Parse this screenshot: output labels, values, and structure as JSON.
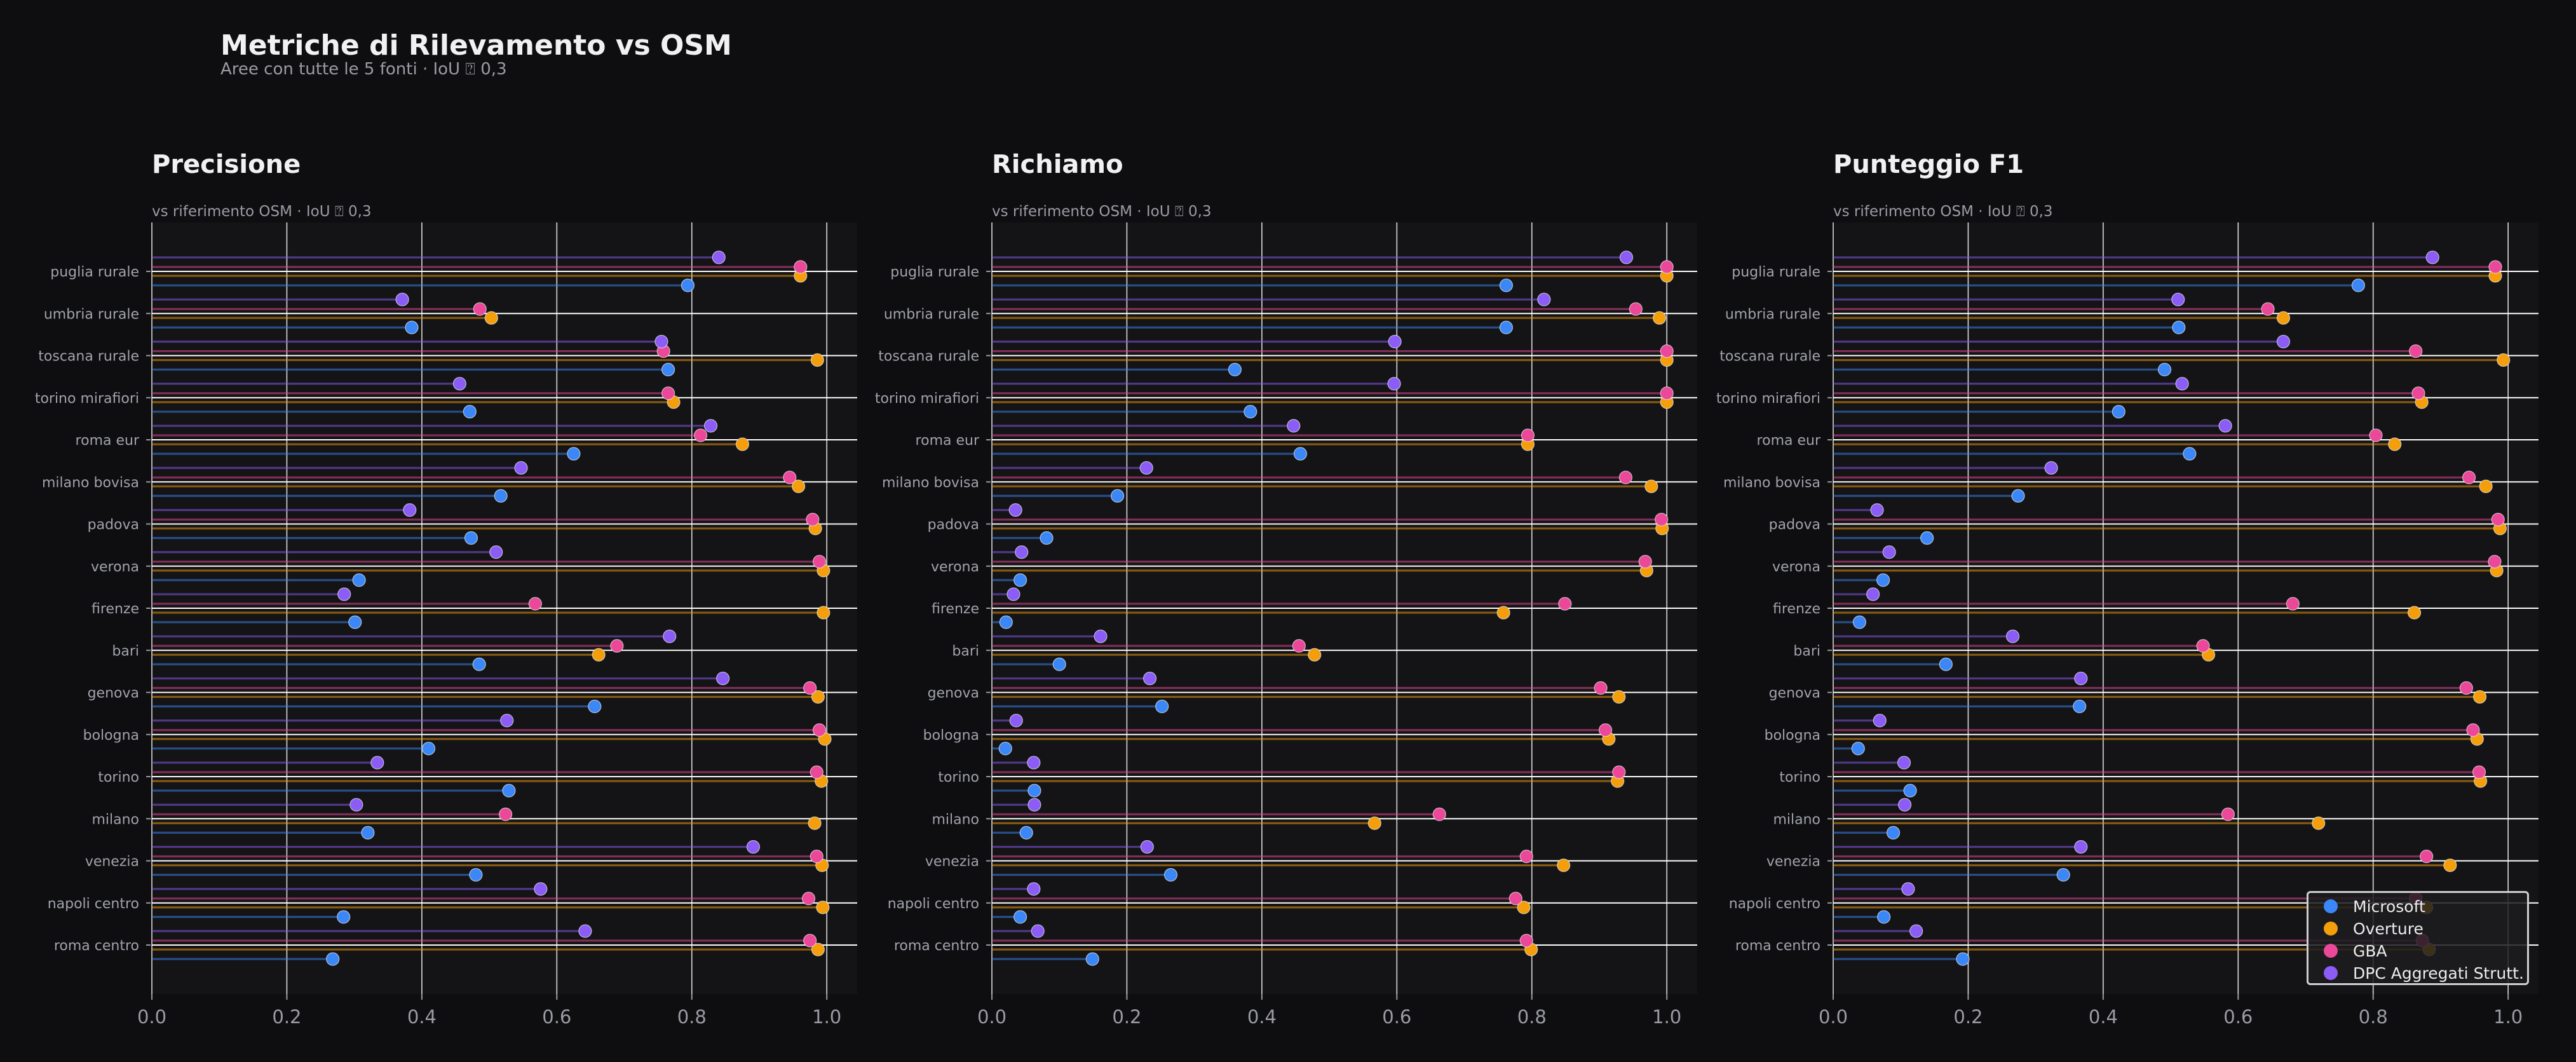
{
  "header": {
    "title": "Metriche di Rilevamento vs OSM",
    "subtitle": "Aree con tutte le 5 fonti · IoU ⍰ 0,3"
  },
  "colors": {
    "background": "#0e0e10",
    "plot_background": "#141416",
    "grid": "#ffffff",
    "text": "#f1f1f3",
    "muted_text": "#9a9ca3"
  },
  "legend": {
    "placement": "bottom-right",
    "items": [
      {
        "name": "Microsoft",
        "color": "#3b87f7"
      },
      {
        "name": "Overture",
        "color": "#f59e0b"
      },
      {
        "name": "GBA",
        "color": "#ec4899"
      },
      {
        "name": "DPC Aggregati Strutt.",
        "color": "#8b5cf6"
      }
    ]
  },
  "chart_data": [
    {
      "type": "bar",
      "mark": "lollipop",
      "orientation": "horizontal",
      "title": "Precisione",
      "subtitle": "vs riferimento OSM · IoU ⍰ 0,3",
      "xlim": [
        0,
        1.045
      ],
      "xticks": [
        0,
        0.2,
        0.4,
        0.6,
        0.8,
        1.0
      ],
      "xtick_labels": [
        "0.0",
        "0.2",
        "0.4",
        "0.6",
        "0.8",
        "1.0"
      ],
      "grid": true,
      "categories": [
        "puglia rurale",
        "umbria rurale",
        "toscana rurale",
        "torino mirafiori",
        "roma eur",
        "milano bovisa",
        "padova",
        "verona",
        "firenze",
        "bari",
        "genova",
        "bologna",
        "torino",
        "milano",
        "venezia",
        "napoli centro",
        "roma centro"
      ],
      "series": [
        {
          "name": "Microsoft",
          "color": "#3b87f7",
          "values": [
            0.794,
            0.385,
            0.765,
            0.471,
            0.625,
            0.517,
            0.473,
            0.307,
            0.301,
            0.485,
            0.656,
            0.41,
            0.529,
            0.32,
            0.48,
            0.284,
            0.268
          ]
        },
        {
          "name": "Overture",
          "color": "#f59e0b",
          "values": [
            0.961,
            0.503,
            0.986,
            0.773,
            0.875,
            0.958,
            0.983,
            0.995,
            0.995,
            0.662,
            0.987,
            0.997,
            0.992,
            0.982,
            0.993,
            0.994,
            0.987
          ]
        },
        {
          "name": "GBA",
          "color": "#ec4899",
          "values": [
            0.961,
            0.486,
            0.758,
            0.765,
            0.813,
            0.945,
            0.979,
            0.989,
            0.568,
            0.689,
            0.975,
            0.989,
            0.985,
            0.524,
            0.985,
            0.973,
            0.975
          ]
        },
        {
          "name": "DPC Aggregati Strutt.",
          "color": "#8b5cf6",
          "values": [
            0.84,
            0.371,
            0.755,
            0.456,
            0.828,
            0.547,
            0.382,
            0.51,
            0.285,
            0.767,
            0.846,
            0.526,
            0.334,
            0.303,
            0.891,
            0.576,
            0.642
          ]
        }
      ]
    },
    {
      "type": "bar",
      "mark": "lollipop",
      "orientation": "horizontal",
      "title": "Richiamo",
      "subtitle": "vs riferimento OSM · IoU ⍰ 0,3",
      "xlim": [
        0,
        1.045
      ],
      "xticks": [
        0,
        0.2,
        0.4,
        0.6,
        0.8,
        1.0
      ],
      "xtick_labels": [
        "0.0",
        "0.2",
        "0.4",
        "0.6",
        "0.8",
        "1.0"
      ],
      "grid": true,
      "categories": [
        "puglia rurale",
        "umbria rurale",
        "toscana rurale",
        "torino mirafiori",
        "roma eur",
        "milano bovisa",
        "padova",
        "verona",
        "firenze",
        "bari",
        "genova",
        "bologna",
        "torino",
        "milano",
        "venezia",
        "napoli centro",
        "roma centro"
      ],
      "series": [
        {
          "name": "Microsoft",
          "color": "#3b87f7",
          "values": [
            0.762,
            0.762,
            0.36,
            0.383,
            0.457,
            0.186,
            0.081,
            0.042,
            0.021,
            0.1,
            0.252,
            0.02,
            0.063,
            0.051,
            0.265,
            0.042,
            0.149
          ]
        },
        {
          "name": "Overture",
          "color": "#f59e0b",
          "values": [
            1.0,
            0.989,
            1.0,
            1.0,
            0.794,
            0.977,
            0.993,
            0.97,
            0.758,
            0.478,
            0.929,
            0.914,
            0.927,
            0.567,
            0.847,
            0.788,
            0.799
          ]
        },
        {
          "name": "GBA",
          "color": "#ec4899",
          "values": [
            1.0,
            0.954,
            1.0,
            1.0,
            0.794,
            0.939,
            0.992,
            0.968,
            0.849,
            0.455,
            0.902,
            0.909,
            0.929,
            0.663,
            0.792,
            0.776,
            0.792
          ]
        },
        {
          "name": "DPC Aggregati Strutt.",
          "color": "#8b5cf6",
          "values": [
            0.94,
            0.818,
            0.597,
            0.596,
            0.447,
            0.229,
            0.035,
            0.044,
            0.032,
            0.161,
            0.234,
            0.036,
            0.062,
            0.063,
            0.23,
            0.062,
            0.068
          ]
        }
      ]
    },
    {
      "type": "bar",
      "mark": "lollipop",
      "orientation": "horizontal",
      "title": "Punteggio F1",
      "subtitle": "vs riferimento OSM · IoU ⍰ 0,3",
      "xlim": [
        0,
        1.045
      ],
      "xticks": [
        0,
        0.2,
        0.4,
        0.6,
        0.8,
        1.0
      ],
      "xtick_labels": [
        "0.0",
        "0.2",
        "0.4",
        "0.6",
        "0.8",
        "1.0"
      ],
      "grid": true,
      "legend": "bottom-right",
      "categories": [
        "puglia rurale",
        "umbria rurale",
        "toscana rurale",
        "torino mirafiori",
        "roma eur",
        "milano bovisa",
        "padova",
        "verona",
        "firenze",
        "bari",
        "genova",
        "bologna",
        "torino",
        "milano",
        "venezia",
        "napoli centro",
        "roma centro"
      ],
      "series": [
        {
          "name": "Microsoft",
          "color": "#3b87f7",
          "values": [
            0.778,
            0.512,
            0.491,
            0.423,
            0.528,
            0.274,
            0.139,
            0.074,
            0.039,
            0.167,
            0.365,
            0.037,
            0.114,
            0.089,
            0.341,
            0.075,
            0.192
          ]
        },
        {
          "name": "Overture",
          "color": "#f59e0b",
          "values": [
            0.981,
            0.667,
            0.993,
            0.872,
            0.832,
            0.967,
            0.988,
            0.983,
            0.861,
            0.556,
            0.958,
            0.954,
            0.959,
            0.719,
            0.914,
            0.879,
            0.883
          ]
        },
        {
          "name": "GBA",
          "color": "#ec4899",
          "values": [
            0.981,
            0.644,
            0.863,
            0.867,
            0.804,
            0.942,
            0.985,
            0.98,
            0.681,
            0.548,
            0.938,
            0.948,
            0.957,
            0.585,
            0.879,
            0.863,
            0.873
          ]
        },
        {
          "name": "DPC Aggregati Strutt.",
          "color": "#8b5cf6",
          "values": [
            0.888,
            0.511,
            0.667,
            0.517,
            0.581,
            0.323,
            0.065,
            0.083,
            0.059,
            0.266,
            0.367,
            0.069,
            0.105,
            0.106,
            0.367,
            0.111,
            0.123
          ]
        }
      ]
    }
  ]
}
